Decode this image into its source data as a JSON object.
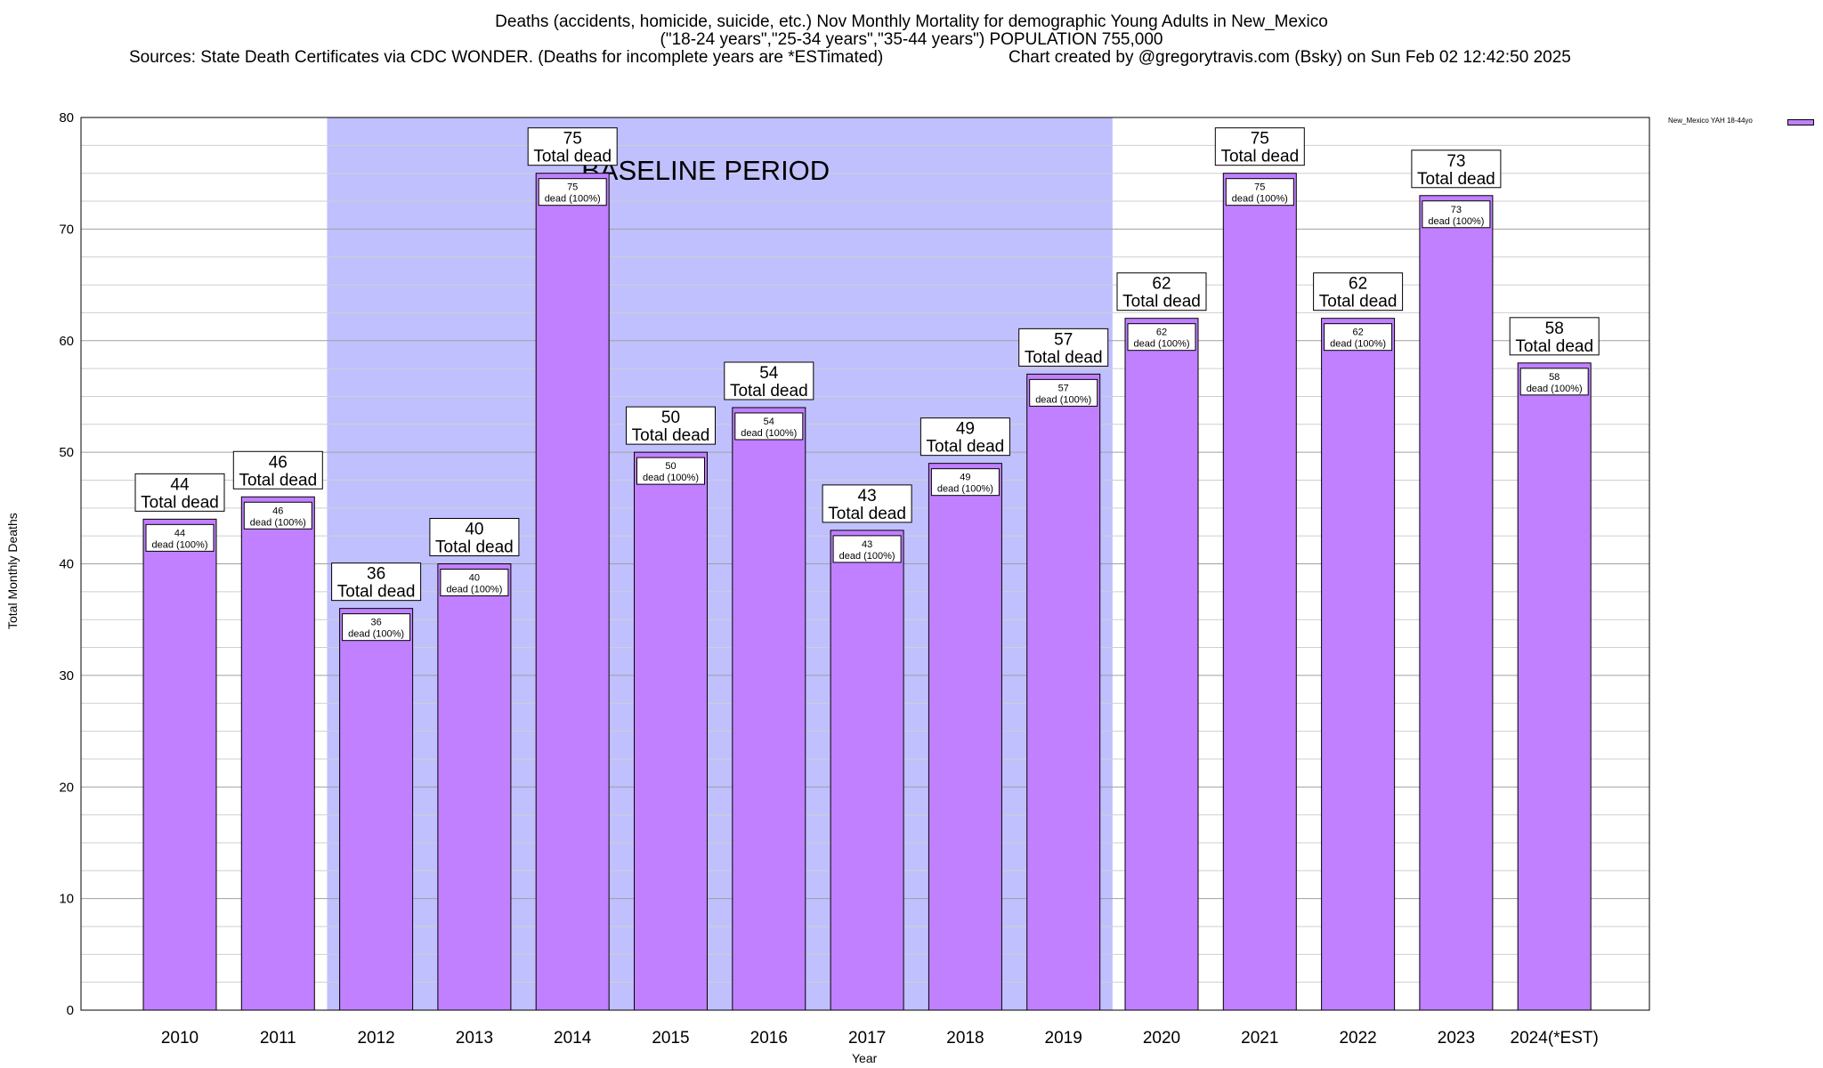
{
  "title": {
    "line1": "Deaths (accidents, homicide, suicide, etc.) Nov Monthly Mortality for demographic Young Adults in New_Mexico",
    "line2": "(\"18-24 years\",\"25-34 years\",\"35-44 years\") POPULATION 755,000",
    "sources": "Sources: State Death Certificates via CDC WONDER. (Deaths for incomplete years are *ESTimated)",
    "credit": "Chart created by @gregorytravis.com (Bsky) on Sun Feb 02 12:42:50 2025"
  },
  "chart_data": {
    "type": "bar",
    "categories": [
      "2010",
      "2011",
      "2012",
      "2013",
      "2014",
      "2015",
      "2016",
      "2017",
      "2018",
      "2019",
      "2020",
      "2021",
      "2022",
      "2023",
      "2024(*EST)"
    ],
    "series": [
      {
        "name": "New_Mexico YAH 18-44yo",
        "values": [
          44,
          46,
          36,
          40,
          75,
          50,
          54,
          43,
          49,
          57,
          62,
          75,
          62,
          73,
          58
        ],
        "color": "#c080ff"
      }
    ],
    "top_label_suffix": "Total dead",
    "inner_label_suffix": "dead (100%)",
    "xlabel": "Year",
    "ylabel": "Total Monthly Deaths",
    "ylim": [
      0,
      80
    ],
    "yticks": [
      0,
      10,
      20,
      30,
      40,
      50,
      60,
      70,
      80
    ],
    "grid": true,
    "legend_position": "top-right",
    "baseline": {
      "label": "BASELINE PERIOD",
      "start_category": "2012",
      "end_category": "2019",
      "color": "#c0c0ff"
    }
  }
}
